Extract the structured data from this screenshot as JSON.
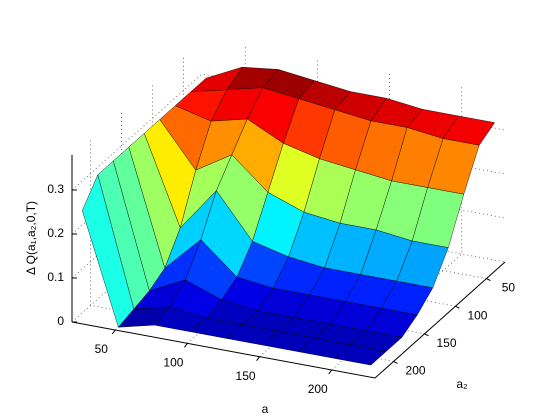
{
  "chart_data": {
    "type": "surface",
    "x_label": "a",
    "y_label": "a₂",
    "z_label": "Δ Q(a₁,a₂,0,T)",
    "colormap": "jet",
    "grid": true,
    "x": [
      25,
      50,
      75,
      100,
      125,
      150,
      175,
      200,
      225
    ],
    "y": [
      25,
      50,
      75,
      100,
      125,
      150,
      175,
      200,
      225
    ],
    "z": [
      [
        0.3,
        0.34,
        0.35,
        0.34,
        0.33,
        0.33,
        0.32,
        0.32,
        0.32
      ],
      [
        0.3,
        0.32,
        0.34,
        0.33,
        0.32,
        0.31,
        0.31,
        0.3,
        0.3
      ],
      [
        0.3,
        0.28,
        0.3,
        0.26,
        0.24,
        0.23,
        0.22,
        0.22,
        0.22
      ],
      [
        0.3,
        0.2,
        0.25,
        0.18,
        0.15,
        0.14,
        0.14,
        0.13,
        0.13
      ],
      [
        0.3,
        0.1,
        0.2,
        0.1,
        0.08,
        0.07,
        0.07,
        0.07,
        0.07
      ],
      [
        0.3,
        0.04,
        0.12,
        0.05,
        0.04,
        0.04,
        0.04,
        0.04,
        0.04
      ],
      [
        0.3,
        0.02,
        0.06,
        0.03,
        0.02,
        0.02,
        0.02,
        0.02,
        0.02
      ],
      [
        0.3,
        0.01,
        0.03,
        0.02,
        0.02,
        0.02,
        0.02,
        0.02,
        0.02
      ],
      [
        0.25,
        0.0,
        0.02,
        0.02,
        0.02,
        0.02,
        0.02,
        0.02,
        0.02
      ]
    ],
    "xlim": [
      20,
      230
    ],
    "ylim": [
      20,
      230
    ],
    "zlim": [
      0,
      0.38
    ],
    "xticks": [
      50,
      100,
      150,
      200
    ],
    "yticks": [
      50,
      100,
      150,
      200
    ],
    "zticks": [
      0,
      0.1,
      0.2,
      0.3
    ]
  }
}
